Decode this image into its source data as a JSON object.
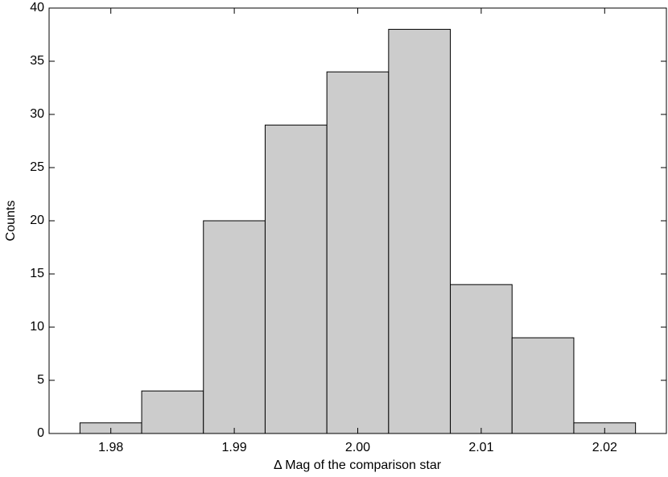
{
  "chart_data": {
    "type": "histogram",
    "xlabel": "Δ Mag of the comparison star",
    "ylabel": "Counts",
    "bins": [
      1.9775,
      1.9825,
      1.9875,
      1.9925,
      1.9975,
      2.0025,
      2.0075,
      2.0125,
      2.0175,
      2.0225
    ],
    "values": [
      1,
      4,
      20,
      29,
      34,
      38,
      14,
      9,
      1
    ],
    "color": "#cccccc",
    "xlim": [
      1.975,
      2.025
    ],
    "xticks": [
      1.98,
      1.99,
      {
        "value": 2,
        "label": "2.00"
      },
      2.01,
      2.02
    ],
    "ylim": [
      0,
      40
    ],
    "yticks": [
      0,
      5,
      10,
      15,
      20,
      25,
      30,
      35,
      40
    ],
    "grid": false
  }
}
